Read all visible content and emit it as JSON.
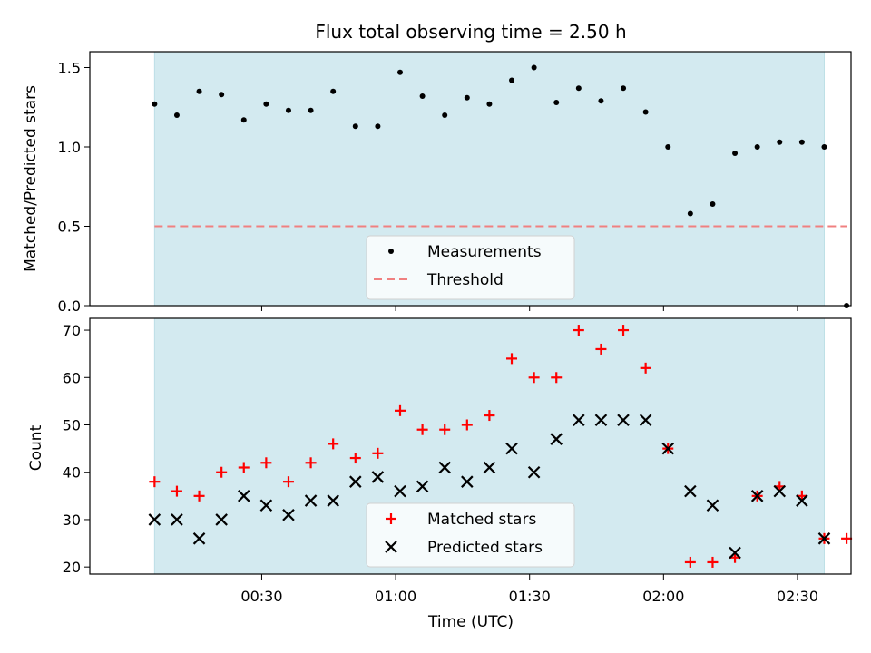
{
  "chart_data": {
    "title": "Flux total observing time = 2.50 h",
    "xlabel": "Time (UTC)",
    "x_tick_labels": [
      "00:30",
      "01:00",
      "01:30",
      "02:00",
      "02:30"
    ],
    "x_tick_minutes": [
      30,
      60,
      90,
      120,
      150
    ],
    "xlim_minutes": [
      -8.5,
      162
    ],
    "observing_window_minutes": [
      6,
      156
    ],
    "window_color": "#d3eaf0",
    "panels": [
      {
        "type": "scatter",
        "ylabel": "Matched/Predicted stars",
        "ylim": [
          0,
          1.6
        ],
        "yticks": [
          0.0,
          0.5,
          1.0,
          1.5
        ],
        "ytick_labels": [
          "0.0",
          "0.5",
          "1.0",
          "1.5"
        ],
        "series": [
          {
            "name": "Measurements",
            "marker": "dot",
            "color": "#000000",
            "x": [
              6,
              11,
              16,
              21,
              26,
              31,
              36,
              41,
              46,
              51,
              56,
              61,
              66,
              71,
              76,
              81,
              86,
              91,
              96,
              101,
              106,
              111,
              116,
              121,
              126,
              131,
              136,
              141,
              146,
              151,
              156,
              161
            ],
            "y": [
              1.27,
              1.2,
              1.35,
              1.33,
              1.17,
              1.27,
              1.23,
              1.23,
              1.35,
              1.13,
              1.13,
              1.47,
              1.32,
              1.2,
              1.31,
              1.27,
              1.42,
              1.5,
              1.28,
              1.37,
              1.29,
              1.37,
              1.22,
              1.0,
              0.58,
              0.64,
              0.96,
              1.0,
              1.03,
              1.03,
              1.0,
              0.0
            ]
          },
          {
            "name": "Threshold",
            "style": "dashed",
            "color": "#f08080",
            "x": [
              6,
              161
            ],
            "y": [
              0.5,
              0.5
            ]
          }
        ],
        "legend": "bottom-center"
      },
      {
        "type": "scatter",
        "ylabel": "Count",
        "ylim": [
          18.5,
          72.5
        ],
        "yticks": [
          20,
          30,
          40,
          50,
          60,
          70
        ],
        "ytick_labels": [
          "20",
          "30",
          "40",
          "50",
          "60",
          "70"
        ],
        "series": [
          {
            "name": "Matched stars",
            "marker": "plus",
            "color": "#ff0000",
            "x": [
              6,
              11,
              16,
              21,
              26,
              31,
              36,
              41,
              46,
              51,
              56,
              61,
              66,
              71,
              76,
              81,
              86,
              91,
              96,
              101,
              106,
              111,
              116,
              121,
              126,
              131,
              136,
              141,
              146,
              151,
              156,
              161
            ],
            "y": [
              38,
              36,
              35,
              40,
              41,
              42,
              38,
              42,
              46,
              43,
              44,
              53,
              49,
              49,
              50,
              52,
              64,
              60,
              60,
              70,
              66,
              70,
              62,
              45,
              21,
              21,
              22,
              35,
              37,
              35,
              26,
              26
            ]
          },
          {
            "name": "Predicted stars",
            "marker": "x",
            "color": "#000000",
            "x": [
              6,
              11,
              16,
              21,
              26,
              31,
              36,
              41,
              46,
              51,
              56,
              61,
              66,
              71,
              76,
              81,
              86,
              91,
              96,
              101,
              106,
              111,
              116,
              121,
              126,
              131,
              136,
              141,
              146,
              151,
              156
            ],
            "y": [
              30,
              30,
              26,
              30,
              35,
              33,
              31,
              34,
              34,
              38,
              39,
              36,
              37,
              41,
              38,
              41,
              45,
              40,
              47,
              51,
              51,
              51,
              51,
              45,
              36,
              33,
              23,
              35,
              36,
              34,
              26
            ]
          }
        ],
        "legend": "bottom-center"
      }
    ]
  }
}
